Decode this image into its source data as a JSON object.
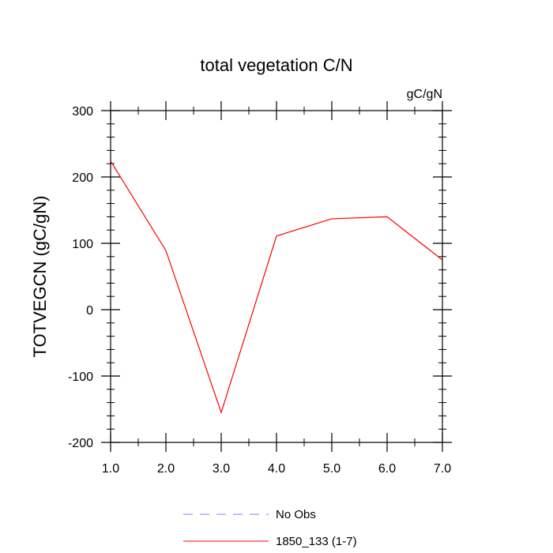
{
  "chart_data": {
    "type": "line",
    "title": "total vegetation C/N",
    "units_label": "gC/gN",
    "xlabel": "",
    "ylabel": "TOTVEGCN  (gC/gN)",
    "xlim": [
      1.0,
      7.0
    ],
    "ylim": [
      -200,
      300
    ],
    "x_ticks": [
      1.0,
      2.0,
      3.0,
      4.0,
      5.0,
      6.0,
      7.0
    ],
    "x_tick_labels": [
      "1.0",
      "2.0",
      "3.0",
      "4.0",
      "5.0",
      "6.0",
      "7.0"
    ],
    "y_ticks": [
      -200,
      -100,
      0,
      100,
      200,
      300
    ],
    "y_tick_labels": [
      "-200",
      "-100",
      "0",
      "100",
      "200",
      "300"
    ],
    "grid": false,
    "legend_position": "bottom-center",
    "series": [
      {
        "name": "1850_133 (1-7)",
        "color": "#ff0000",
        "style": "solid",
        "x": [
          1.0,
          2.0,
          3.0,
          4.0,
          5.0,
          6.0,
          7.0
        ],
        "y": [
          224,
          89,
          -155,
          111,
          137,
          140,
          75
        ]
      }
    ],
    "legend": [
      {
        "label": "No Obs",
        "color": "#8080ff",
        "style": "dashed"
      },
      {
        "label": "1850_133 (1-7)",
        "color": "#ff0000",
        "style": "solid"
      }
    ]
  }
}
